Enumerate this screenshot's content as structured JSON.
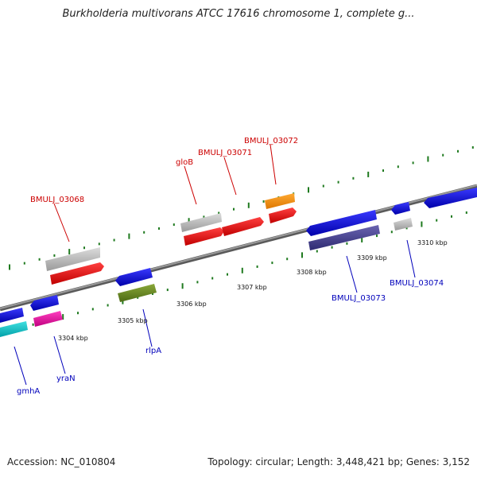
{
  "title": "Burkholderia multivorans ATCC 17616 chromosome 1, complete g...",
  "accession": "Accession: NC_010804",
  "summary": "Topology: circular; Length: 3,448,421 bp; Genes: 3,152",
  "colors": {
    "backbone": "#8a8a8a",
    "ticks": "#1f7a1f",
    "top_label": "#cc0000",
    "bottom_label": "#0000bb"
  },
  "kbp_ticks": [
    "3304 kbp",
    "3305 kbp",
    "3306 kbp",
    "3307 kbp",
    "3308 kbp",
    "3309 kbp",
    "3310 kbp"
  ],
  "gene_labels": {
    "bmulj_03068": "BMULJ_03068",
    "glob": "gloB",
    "bmulj_03071": "BMULJ_03071",
    "bmulj_03072": "BMULJ_03072",
    "gmha": "gmhA",
    "yran": "yraN",
    "rlpa": "rlpA",
    "bmulj_03073": "BMULJ_03073",
    "bmulj_03074": "BMULJ_03074"
  }
}
